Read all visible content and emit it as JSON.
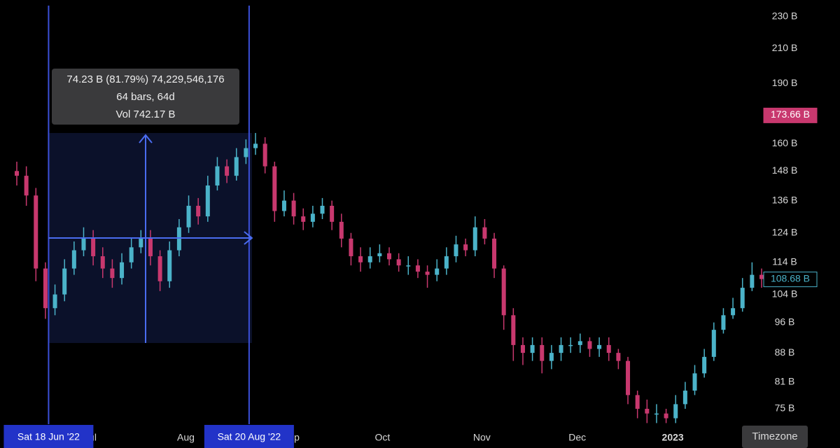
{
  "chart_data": {
    "type": "candlestick",
    "open": [
      148,
      146,
      138,
      112,
      100,
      104,
      112,
      118,
      122,
      116,
      112,
      109,
      114,
      119,
      122,
      116,
      108,
      118,
      126,
      134,
      130,
      142,
      150,
      146,
      154,
      158,
      160,
      150,
      132,
      136,
      130,
      128,
      131,
      134,
      128,
      122,
      116,
      114,
      116,
      117,
      115,
      113,
      113,
      111,
      110,
      112,
      116,
      120,
      118,
      126,
      122,
      112,
      98,
      90,
      88,
      90,
      86,
      88,
      90,
      90,
      91,
      89,
      90,
      88,
      86,
      78,
      75,
      74,
      74,
      73,
      76,
      79,
      83,
      87,
      94,
      98,
      100,
      106,
      110
    ],
    "high": [
      152,
      150,
      141,
      114,
      107,
      115,
      121,
      126,
      125,
      119,
      115,
      117,
      122,
      125,
      125,
      118,
      121,
      129,
      138,
      137,
      146,
      154,
      153,
      158,
      162,
      165,
      163,
      152,
      140,
      139,
      133,
      134,
      137,
      136,
      131,
      124,
      119,
      119,
      120,
      119,
      117,
      116,
      115,
      113,
      115,
      119,
      123,
      122,
      130,
      129,
      124,
      113,
      100,
      92,
      92,
      92,
      90,
      92,
      92,
      93,
      92,
      92,
      92,
      89,
      87,
      79,
      77,
      76,
      75,
      78,
      81,
      85,
      89,
      96,
      100,
      103,
      109,
      114,
      112
    ],
    "low": [
      142,
      134,
      108,
      97,
      98,
      102,
      110,
      116,
      113,
      109,
      106,
      107,
      112,
      117,
      113,
      105,
      106,
      116,
      124,
      127,
      128,
      140,
      143,
      144,
      151,
      155,
      147,
      128,
      130,
      127,
      125,
      126,
      129,
      125,
      119,
      113,
      111,
      112,
      114,
      113,
      111,
      110,
      109,
      106,
      108,
      110,
      114,
      116,
      116,
      120,
      109,
      94,
      86,
      85,
      86,
      83,
      84,
      86,
      88,
      88,
      87,
      87,
      86,
      84,
      76,
      73,
      72,
      72,
      72,
      72,
      75,
      78,
      82,
      86,
      93,
      97,
      99,
      105,
      106
    ],
    "close": [
      146,
      138,
      112,
      100,
      104,
      112,
      118,
      122,
      116,
      112,
      109,
      114,
      119,
      122,
      116,
      108,
      118,
      126,
      134,
      130,
      142,
      150,
      146,
      154,
      158,
      160,
      150,
      132,
      136,
      130,
      128,
      131,
      134,
      128,
      122,
      116,
      114,
      116,
      117,
      115,
      113,
      113,
      111,
      110,
      112,
      116,
      120,
      118,
      126,
      122,
      112,
      98,
      90,
      88,
      90,
      86,
      88,
      90,
      90,
      91,
      89,
      90,
      88,
      86,
      78,
      75,
      74,
      74,
      73,
      76,
      79,
      83,
      87,
      94,
      98,
      100,
      106,
      110,
      108.68
    ],
    "up_color": "#4bb3c9",
    "down_color": "#c8386e",
    "log_scale": true,
    "xlim": [
      0,
      78
    ],
    "xticks": [
      {
        "value": 7.7,
        "label": "Jul"
      },
      {
        "value": 17.7,
        "label": "Aug"
      },
      {
        "value": 28.7,
        "label": "Sep"
      },
      {
        "value": 38.3,
        "label": "Oct"
      },
      {
        "value": 48.7,
        "label": "Nov"
      },
      {
        "value": 58.7,
        "label": "Dec"
      },
      {
        "value": 68.7,
        "label": "2023"
      }
    ],
    "ylim": [
      71.2,
      241.3
    ],
    "yticks": [
      {
        "value": 75,
        "label": "75 B"
      },
      {
        "value": 81,
        "label": "81 B"
      },
      {
        "value": 88,
        "label": "88 B"
      },
      {
        "value": 96,
        "label": "96 B"
      },
      {
        "value": 104,
        "label": "104 B"
      },
      {
        "value": 114,
        "label": "114 B"
      },
      {
        "value": 124,
        "label": "124 B"
      },
      {
        "value": 136,
        "label": "136 B"
      },
      {
        "value": 148,
        "label": "148 B"
      },
      {
        "value": 160,
        "label": "160 B"
      },
      {
        "value": 190,
        "label": "190 B"
      },
      {
        "value": 210,
        "label": "210 B"
      },
      {
        "value": 230,
        "label": "230 B"
      }
    ],
    "price_markers": [
      {
        "value": 173.66,
        "label": "173.66 B",
        "color": "#c8386e"
      },
      {
        "value": 108.68,
        "label": "108.68 B",
        "color": "#4bb3c9"
      }
    ],
    "date_markers": [
      {
        "value": 3.33,
        "label": "Sat 18 Jun '22"
      },
      {
        "value": 24.33,
        "label": "Sat 20 Aug '22"
      }
    ],
    "measure": {
      "lines": [
        "74.23 B (81.79%) 74,229,546,176",
        "64 bars, 64d",
        "Vol 742.17 B"
      ]
    },
    "button": "Timezone"
  }
}
